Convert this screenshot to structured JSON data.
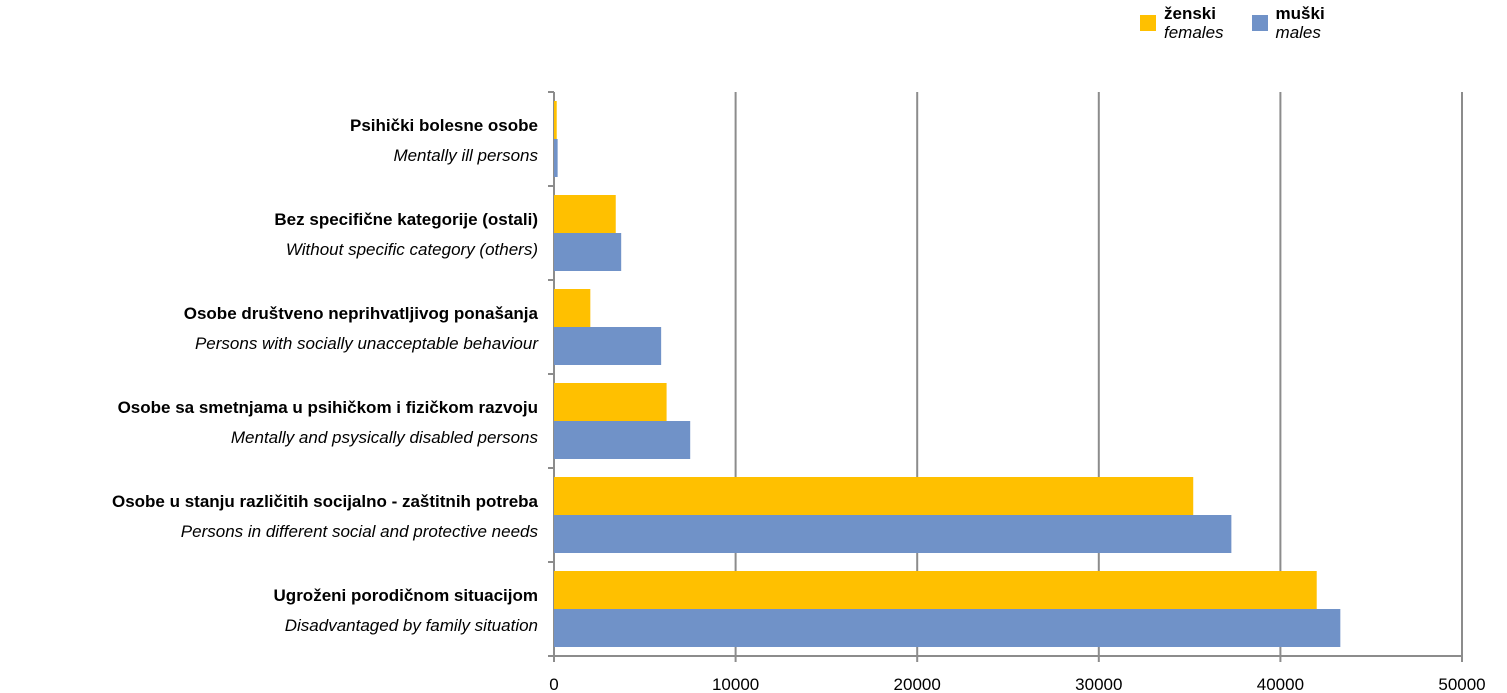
{
  "legend": {
    "females": {
      "label_local": "ženski",
      "label_en": "females",
      "color": "#FFC000"
    },
    "males": {
      "label_local": "muški",
      "label_en": "males",
      "color": "#7092C8"
    }
  },
  "chart_data": {
    "type": "bar",
    "orientation": "horizontal",
    "categories": [
      {
        "local": "Psihički bolesne osobe",
        "en": "Mentally ill persons"
      },
      {
        "local": "Bez specifične kategorije (ostali)",
        "en": "Without specific category (others)"
      },
      {
        "local": "Osobe društveno neprihvatljivog ponašanja",
        "en": "Persons with socially unacceptable behaviour"
      },
      {
        "local": "Osobe sa smetnjama u psihičkom i fizičkom razvoju",
        "en": "Mentally and psysically disabled persons"
      },
      {
        "local": "Osobe u stanju različitih socijalno - zaštitnih potreba",
        "en": "Persons in different social and protective needs"
      },
      {
        "local": "Ugroženi porodičnom situacijom",
        "en": "Disadvantaged by family situation"
      }
    ],
    "series": [
      {
        "name": "ženski / females",
        "color": "#FFC000",
        "values": [
          150,
          3400,
          2000,
          6200,
          35200,
          42000
        ]
      },
      {
        "name": "muški / males",
        "color": "#7092C8",
        "values": [
          200,
          3700,
          5900,
          7500,
          37300,
          43300
        ]
      }
    ],
    "xlim": [
      0,
      50000
    ],
    "xticks": [
      "0",
      "10000",
      "20000",
      "30000",
      "40000",
      "50000"
    ],
    "grid": true,
    "legend_position": "top-right"
  }
}
